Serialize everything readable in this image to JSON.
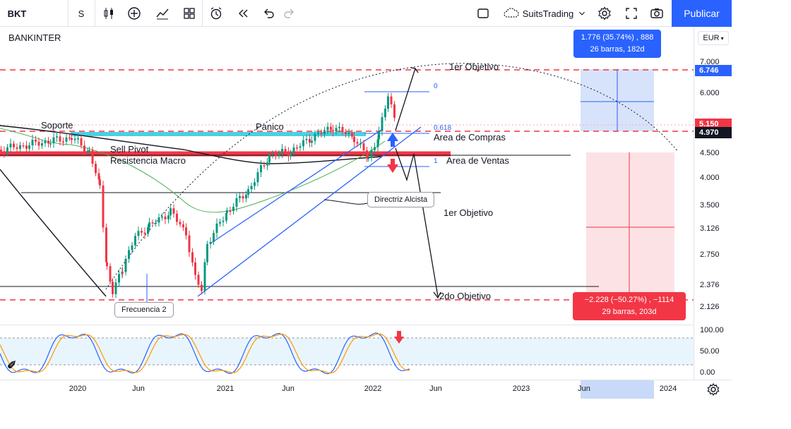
{
  "toolbar": {
    "symbol": "BKT",
    "interval": "S",
    "layout_name": "SuitsTrading",
    "publish_label": "Publicar"
  },
  "chart": {
    "symbol_title": "BANKINTER",
    "currency": "EUR",
    "annotations": {
      "soporte": "Soporte",
      "panico": "Panico",
      "sell_pivot": "Sell Pivot",
      "resistencia_macro": "Resistencia Macro",
      "area_compras": "Area de Compras",
      "area_ventas": "Area de Ventas",
      "objetivo_1_top": "1er Objetivo",
      "objetivo_1_mid": "1er Objetivo",
      "objetivo_2": "2do Objetivo",
      "directriz": "Directriz Alcista",
      "frecuencia": "Frecuencia 2"
    },
    "fib_labels": {
      "f0": "0",
      "f0618": "0.618",
      "f1": "1"
    },
    "measure_up": {
      "line1": "1.776 (35.74%) , 888",
      "line2": "26 barras, 182d"
    },
    "measure_down": {
      "line1": "−2.228 (−50.27%) , −1114",
      "line2": "29 barras, 203d"
    }
  },
  "price_axis": {
    "labels": [
      "7.000",
      "6.000",
      "5.150",
      "4.500",
      "4.000",
      "3.500",
      "3.126",
      "2.750",
      "2.376",
      "2.126"
    ],
    "badge_blue": "6.746",
    "badge_red": "5.150",
    "badge_dark": "4.970",
    "osc_labels": [
      "100.00",
      "50.00",
      "0.00"
    ]
  },
  "time_axis": {
    "labels": [
      "2020",
      "Jun",
      "2021",
      "Jun",
      "2022",
      "Jun",
      "2023",
      "Jun",
      "2024"
    ]
  },
  "colors": {
    "accent": "#2962ff",
    "red": "#f23645",
    "green_candle": "#089981",
    "cyan_zone": "#4dd0e1"
  }
}
